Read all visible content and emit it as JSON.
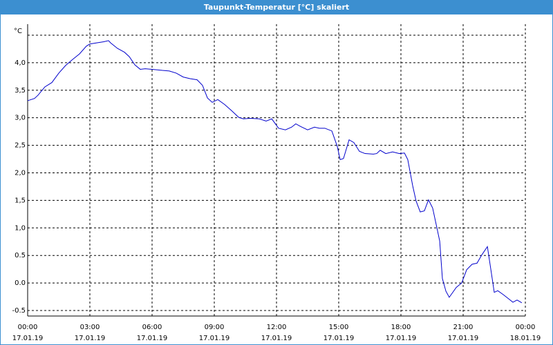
{
  "chart_data": {
    "type": "line",
    "title": "Taupunkt-Temperatur [°C] skaliert",
    "xlim": [
      0,
      24
    ],
    "ylim": [
      -0.6,
      4.7
    ],
    "xticks": [
      {
        "value": 0,
        "label": "00:00",
        "date": "17.01.19"
      },
      {
        "value": 3,
        "label": "03:00",
        "date": "17.01.19"
      },
      {
        "value": 6,
        "label": "06:00",
        "date": "17.01.19"
      },
      {
        "value": 9,
        "label": "09:00",
        "date": "17.01.19"
      },
      {
        "value": 12,
        "label": "12:00",
        "date": "17.01.19"
      },
      {
        "value": 15,
        "label": "15:00",
        "date": "17.01.19"
      },
      {
        "value": 18,
        "label": "18:00",
        "date": "17.01.19"
      },
      {
        "value": 21,
        "label": "21:00",
        "date": "17.01.19"
      },
      {
        "value": 24,
        "label": "00:00",
        "date": "18.01.19"
      }
    ],
    "yticks": [
      {
        "value": -0.5,
        "label": "-0.5"
      },
      {
        "value": 0,
        "label": "0.0"
      },
      {
        "value": 0.5,
        "label": "0.5"
      },
      {
        "value": 1,
        "label": "1,0"
      },
      {
        "value": 1.5,
        "label": "1,5"
      },
      {
        "value": 2,
        "label": "2,0"
      },
      {
        "value": 2.5,
        "label": "2,5"
      },
      {
        "value": 3,
        "label": "3,0"
      },
      {
        "value": 3.5,
        "label": "3,5"
      },
      {
        "value": 4,
        "label": "4,0"
      },
      {
        "value": 4.5,
        "label": "°C"
      }
    ],
    "grid": true,
    "series": [
      {
        "color": "#0000cc",
        "x": [
          0,
          0.33,
          0.5,
          0.83,
          1.17,
          1.5,
          1.83,
          2.17,
          2.5,
          2.83,
          3,
          3.33,
          3.67,
          3.9,
          4,
          4.33,
          4.67,
          4.9,
          5.17,
          5.43,
          5.67,
          6,
          6.5,
          6.83,
          7.17,
          7.5,
          7.83,
          8.17,
          8.43,
          8.67,
          8.9,
          9.17,
          9.5,
          9.83,
          10.17,
          10.4,
          10.73,
          11.17,
          11.5,
          11.77,
          12.1,
          12.43,
          12.73,
          12.93,
          13.17,
          13.5,
          13.83,
          14.07,
          14.33,
          14.67,
          14.93,
          15.07,
          15.23,
          15.5,
          15.73,
          16,
          16.27,
          16.67,
          16.83,
          17,
          17.27,
          17.6,
          17.93,
          18.17,
          18.33,
          18.57,
          18.73,
          18.93,
          19.13,
          19.33,
          19.53,
          19.73,
          19.87,
          20,
          20.17,
          20.33,
          20.67,
          20.93,
          21.17,
          21.43,
          21.67,
          21.9,
          22.17,
          22.33,
          22.5,
          22.67,
          22.93,
          23.17,
          23.4,
          23.6,
          23.83
        ],
        "values": [
          3.31,
          3.35,
          3.41,
          3.56,
          3.64,
          3.81,
          3.95,
          4.06,
          4.16,
          4.3,
          4.34,
          4.36,
          4.38,
          4.4,
          4.36,
          4.26,
          4.19,
          4.11,
          3.96,
          3.88,
          3.89,
          3.88,
          3.86,
          3.85,
          3.81,
          3.74,
          3.71,
          3.69,
          3.59,
          3.36,
          3.28,
          3.33,
          3.24,
          3.13,
          3.01,
          2.98,
          2.99,
          2.98,
          2.94,
          2.98,
          2.81,
          2.78,
          2.83,
          2.89,
          2.84,
          2.78,
          2.83,
          2.81,
          2.81,
          2.76,
          2.48,
          2.24,
          2.26,
          2.6,
          2.55,
          2.39,
          2.35,
          2.34,
          2.35,
          2.41,
          2.35,
          2.38,
          2.35,
          2.36,
          2.24,
          1.76,
          1.49,
          1.29,
          1.31,
          1.51,
          1.36,
          1.01,
          0.76,
          0.08,
          -0.15,
          -0.26,
          -0.08,
          0.0,
          0.24,
          0.34,
          0.36,
          0.51,
          0.66,
          0.26,
          -0.17,
          -0.14,
          -0.21,
          -0.28,
          -0.35,
          -0.31,
          -0.36
        ]
      }
    ]
  }
}
